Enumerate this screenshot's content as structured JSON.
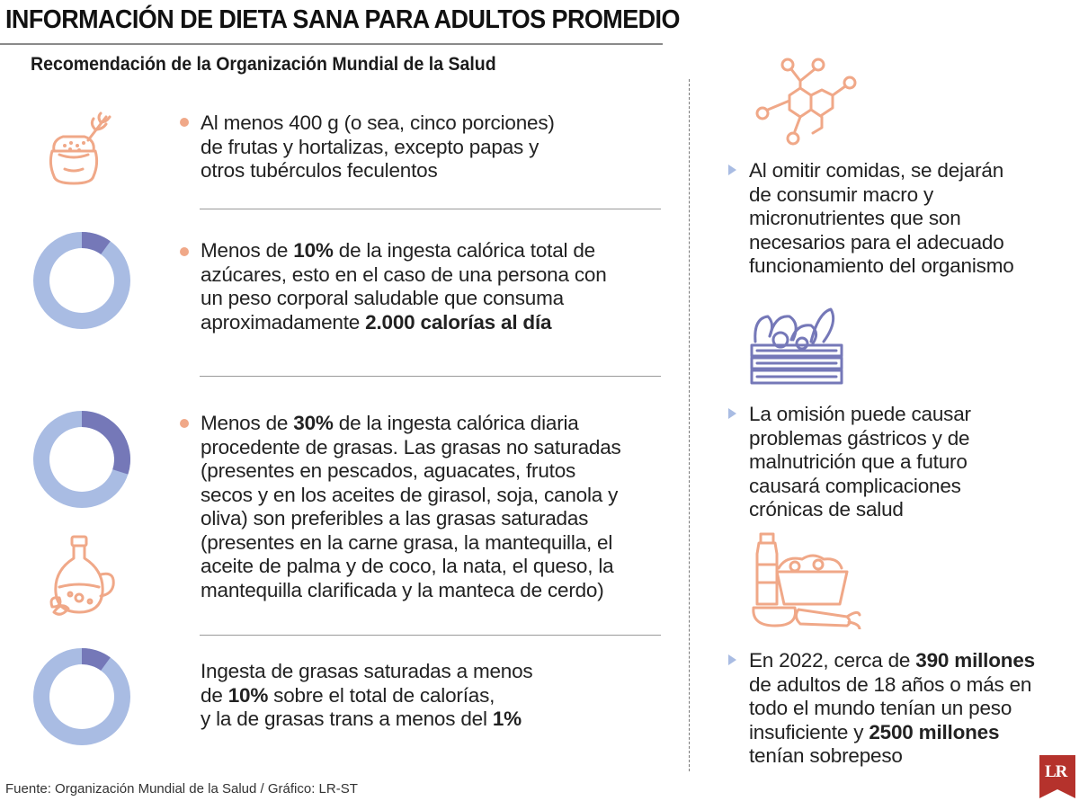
{
  "title": "INFORMACIÓN DE DIETA SANA PARA ADULTOS PROMEDIO",
  "subtitle": "Recomendación de la Organización Mundial de la Salud",
  "colors": {
    "accent_orange": "#f0a888",
    "donut_light": "#a9bce3",
    "donut_dark": "#7578b8",
    "logo_red": "#b5322c"
  },
  "left_items": [
    {
      "icon": "grain-sack-icon",
      "lines": [
        [
          "Al menos 400 g (o sea, cinco porciones)"
        ],
        [
          "de frutas y hortalizas, excepto papas y"
        ],
        [
          "otros tubérculos feculentos"
        ]
      ]
    },
    {
      "icon": "donut-chart",
      "share_percent": 10,
      "lines": [
        [
          "Menos de ",
          "10%",
          " de la ingesta calórica total de"
        ],
        [
          "azúcares, esto en el caso de una persona con"
        ],
        [
          "un peso corporal saludable que consuma"
        ],
        [
          "aproximadamente ",
          "2.000 calorías al día"
        ]
      ]
    },
    {
      "icon": "donut-chart",
      "share_percent": 30,
      "icon2": "oil-bottle-icon",
      "lines": [
        [
          "Menos de ",
          "30%",
          " de la ingesta calórica diaria"
        ],
        [
          "procedente de grasas. Las grasas no saturadas"
        ],
        [
          "(presentes en pescados, aguacates, frutos"
        ],
        [
          "secos y en los aceites de girasol, soja, canola y"
        ],
        [
          "oliva) son preferibles a las grasas saturadas"
        ],
        [
          "(presentes en la carne grasa, la mantequilla, el"
        ],
        [
          "aceite de palma y de coco, la nata, el queso, la"
        ],
        [
          "mantequilla clarificada y la manteca de cerdo)"
        ]
      ]
    },
    {
      "icon": "donut-chart",
      "share_percent": 10,
      "lines": [
        [
          "Ingesta de grasas saturadas a menos"
        ],
        [
          "de ",
          "10%",
          " sobre el total de calorías,"
        ],
        [
          "y la de grasas trans a menos del ",
          "1%"
        ]
      ]
    }
  ],
  "right_items": [
    {
      "icon": "molecule-icon",
      "lines": [
        [
          "Al omitir comidas, se dejarán"
        ],
        [
          "de consumir macro y"
        ],
        [
          "micronutrientes que son"
        ],
        [
          "necesarios para el adecuado"
        ],
        [
          "funcionamiento del organismo"
        ]
      ]
    },
    {
      "icon": "vegetable-crate-icon",
      "lines": [
        [
          "La omisión puede causar"
        ],
        [
          "problemas gástricos y de"
        ],
        [
          "malnutrición que a futuro"
        ],
        [
          "causará complicaciones"
        ],
        [
          "crónicas de salud"
        ]
      ]
    },
    {
      "icon": "groceries-icon",
      "lines": [
        [
          "En 2022, cerca de ",
          "390 millones"
        ],
        [
          "de adultos de 18 años o más en"
        ],
        [
          "todo el mundo tenían un peso"
        ],
        [
          "insuficiente y ",
          "2500 millones"
        ],
        [
          "tenían sobrepeso"
        ]
      ]
    }
  ],
  "source": "Fuente: Organización Mundial de la Salud / Gráfico: LR-ST",
  "logo": "LR"
}
